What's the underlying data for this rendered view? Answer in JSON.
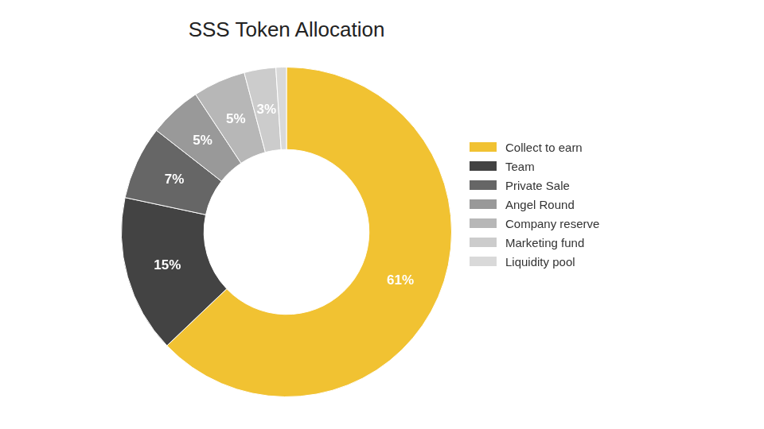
{
  "chart_data": {
    "type": "doughnut",
    "title": "SSS Token Allocation",
    "categories": [
      "Collect to earn",
      "Team",
      "Private Sale",
      "Angel Round",
      "Company reserve",
      "Marketing fund",
      "Liquidity pool"
    ],
    "values": [
      61,
      15,
      7,
      5,
      5,
      3,
      1
    ],
    "value_labels": [
      "61%",
      "15%",
      "7%",
      "5%",
      "5%",
      "3%",
      null
    ],
    "colors": [
      "#f1c232",
      "#434343",
      "#666666",
      "#999999",
      "#b7b7b7",
      "#cccccc",
      "#d9d9d9"
    ],
    "legend": "right",
    "data_labels": true
  }
}
